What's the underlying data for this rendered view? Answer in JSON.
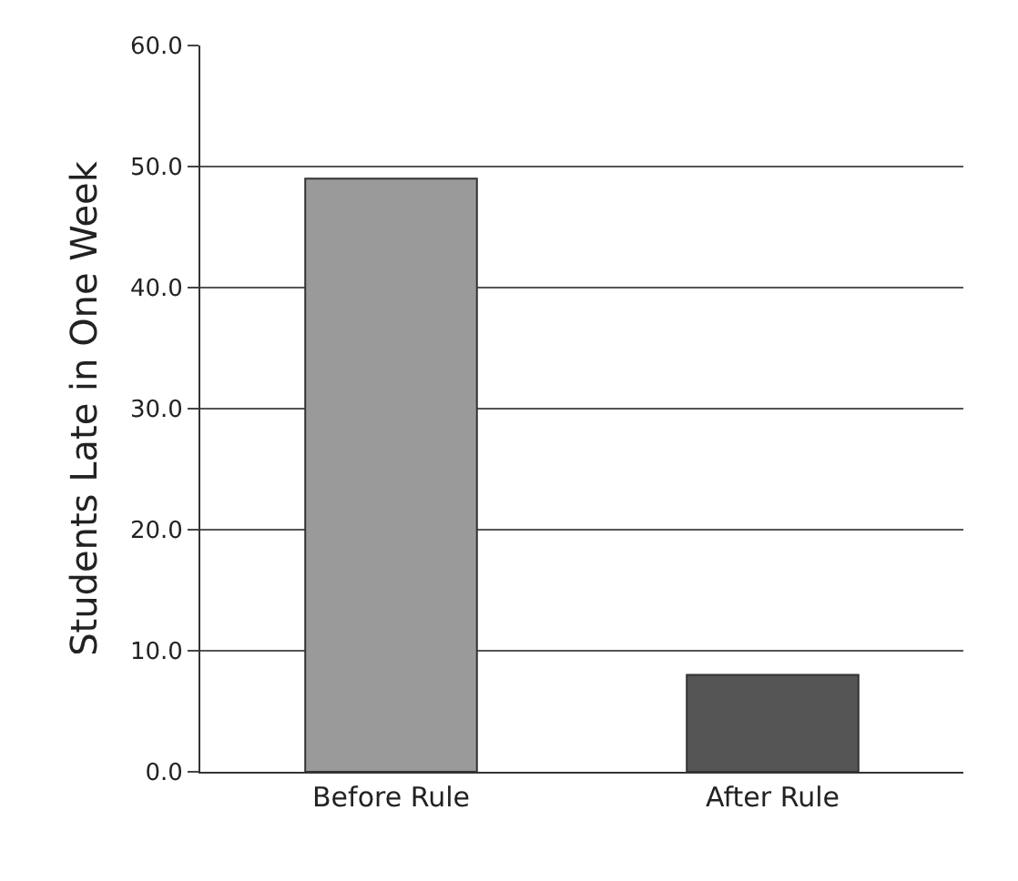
{
  "chart_data": {
    "type": "bar",
    "ylabel": "Students Late in One Week",
    "categories": [
      "Before Rule",
      "After Rule"
    ],
    "values": [
      49,
      8
    ],
    "colors": [
      "#9a9a9a",
      "#555555"
    ],
    "ylim": [
      0,
      60
    ],
    "yticks": [
      {
        "value": 0,
        "label": "0.0"
      },
      {
        "value": 10,
        "label": "10.0"
      },
      {
        "value": 20,
        "label": "20.0"
      },
      {
        "value": 30,
        "label": "30.0"
      },
      {
        "value": 40,
        "label": "40.0"
      },
      {
        "value": 50,
        "label": "50.0"
      },
      {
        "value": 60,
        "label": "60.0"
      }
    ],
    "grid": "y"
  }
}
